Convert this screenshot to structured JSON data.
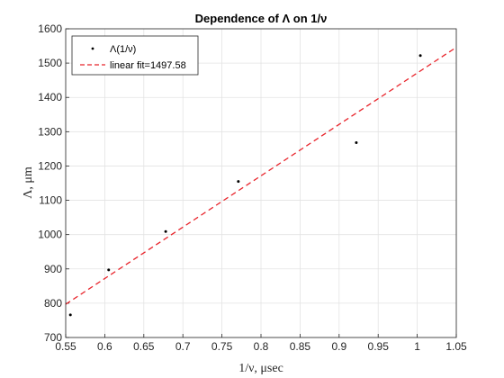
{
  "chart_data": {
    "type": "scatter",
    "title": "Dependence of Λ on 1/ν",
    "xlabel": "1/ν, μsec",
    "ylabel": "Λ, μm",
    "xlim": [
      0.55,
      1.05
    ],
    "ylim": [
      700,
      1600
    ],
    "xticks": [
      "0.55",
      "0.6",
      "0.65",
      "0.7",
      "0.75",
      "0.8",
      "0.85",
      "0.9",
      "0.95",
      "1",
      "1.05"
    ],
    "yticks": [
      "700",
      "800",
      "900",
      "1000",
      "1100",
      "1200",
      "1300",
      "1400",
      "1500",
      "1600"
    ],
    "grid": true,
    "legend_position": "top-left",
    "series": [
      {
        "name": "Λ(1/ν)",
        "kind": "points",
        "color": "#000000",
        "x": [
          0.556,
          0.605,
          0.678,
          0.771,
          0.922,
          1.004
        ],
        "y": [
          766,
          897,
          1009,
          1155,
          1268,
          1522
        ]
      },
      {
        "name": "linear fit=1497.58",
        "kind": "dashed-line",
        "color": "#e8242b",
        "x": [
          0.55,
          1.05
        ],
        "y": [
          797,
          1546
        ]
      }
    ]
  }
}
